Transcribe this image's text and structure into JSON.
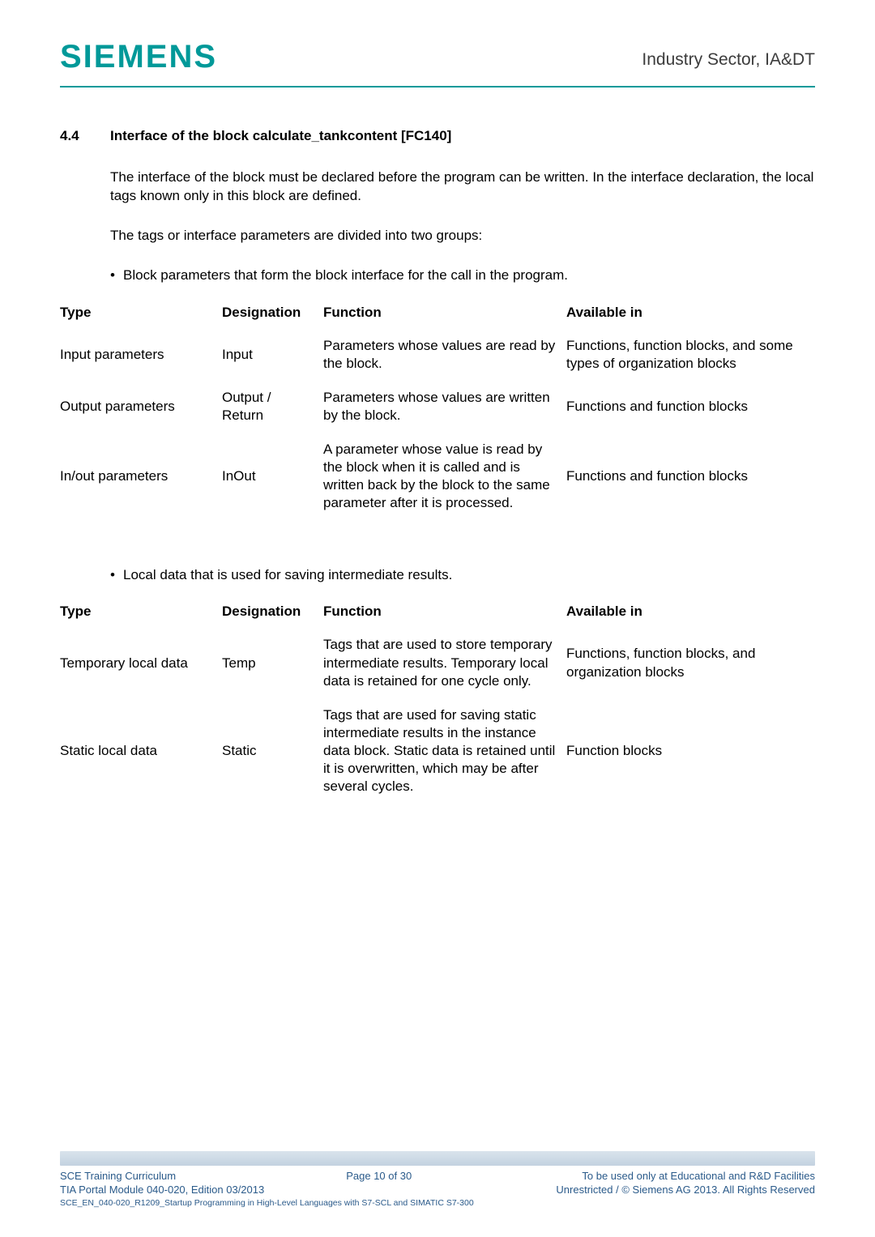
{
  "header": {
    "logo_text": "SIEMENS",
    "right_text": "Industry Sector, IA&DT",
    "accent_color": "#009999"
  },
  "section": {
    "number": "4.4",
    "title": "Interface of the block calculate_tankcontent [FC140]"
  },
  "paragraphs": {
    "p1": "The interface of the block must be declared before the program can be written. In the interface declaration, the local tags known only in this block are defined.",
    "p2": "The tags or interface parameters are divided into two groups:",
    "bullet1": "Block parameters that form the block interface for the call in the program.",
    "bullet2": "Local data that is used for saving intermediate results."
  },
  "table1": {
    "headers": {
      "c1": "Type",
      "c2": "Designation",
      "c3": "Function",
      "c4": "Available in"
    },
    "rows": [
      {
        "c1": "Input parameters",
        "c2": "Input",
        "c3": "Parameters whose values are read by the block.",
        "c4": "Functions, function blocks, and some types of organization blocks"
      },
      {
        "c1": "Output parameters",
        "c2": "Output / Return",
        "c3": "Parameters whose values are written by the block.",
        "c4": "Functions and function blocks"
      },
      {
        "c1": "In/out parameters",
        "c2": "InOut",
        "c3": "A parameter whose value is read by the block when it is called and is written back by the block to the same parameter after it is processed.",
        "c4": "Functions and function blocks"
      }
    ]
  },
  "table2": {
    "headers": {
      "c1": "Type",
      "c2": "Designation",
      "c3": "Function",
      "c4": "Available in"
    },
    "rows": [
      {
        "c1": "Temporary local data",
        "c2": "Temp",
        "c3": "Tags that are used to store temporary intermediate results. Temporary local data is retained for one cycle only.",
        "c4": "Functions, function blocks, and organization blocks"
      },
      {
        "c1": "Static local data",
        "c2": "Static",
        "c3": "Tags that are used for saving static intermediate results in the instance data block. Static data is retained until it is overwritten, which may be after several cycles.",
        "c4": "Function blocks"
      }
    ]
  },
  "footer": {
    "left_line1": "SCE Training Curriculum",
    "left_line2": "TIA Portal Module 040-020, Edition 03/2013",
    "left_sub": "SCE_EN_040-020_R1209_Startup Programming in High-Level Languages with S7-SCL and SIMATIC S7-300",
    "center": "Page 10 of 30",
    "right_line1": "To be used only at Educational and R&D Facilities",
    "right_line2": "Unrestricted / © Siemens AG 2013. All Rights Reserved"
  }
}
